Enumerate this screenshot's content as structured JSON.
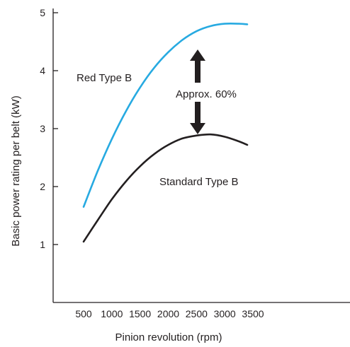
{
  "chart_data": {
    "type": "line",
    "xlabel": "Pinion revolution (rpm)",
    "ylabel": "Basic power rating per belt (kW)",
    "xlim": [
      0,
      4500
    ],
    "ylim": [
      0,
      5
    ],
    "x_ticks": [
      500,
      1000,
      1500,
      2000,
      2500,
      3000,
      3500
    ],
    "y_ticks": [
      1,
      2,
      3,
      4,
      5
    ],
    "grid": false,
    "series": [
      {
        "name": "Red Type B",
        "color": "#27aae1",
        "x": [
          500,
          750,
          1000,
          1250,
          1500,
          1750,
          2000,
          2250,
          2500,
          2750,
          3000,
          3250,
          3400
        ],
        "y": [
          1.65,
          2.27,
          2.82,
          3.3,
          3.71,
          4.05,
          4.32,
          4.53,
          4.68,
          4.77,
          4.81,
          4.81,
          4.8
        ]
      },
      {
        "name": "Standard Type B",
        "color": "#231f20",
        "x": [
          500,
          750,
          1000,
          1250,
          1500,
          1750,
          2000,
          2250,
          2500,
          2750,
          3000,
          3250,
          3400
        ],
        "y": [
          1.05,
          1.42,
          1.78,
          2.09,
          2.35,
          2.56,
          2.72,
          2.83,
          2.88,
          2.9,
          2.86,
          2.78,
          2.72
        ]
      }
    ],
    "annotations": [
      {
        "text": "Approx. 60%",
        "x": 3000,
        "y": 3.9
      }
    ]
  }
}
